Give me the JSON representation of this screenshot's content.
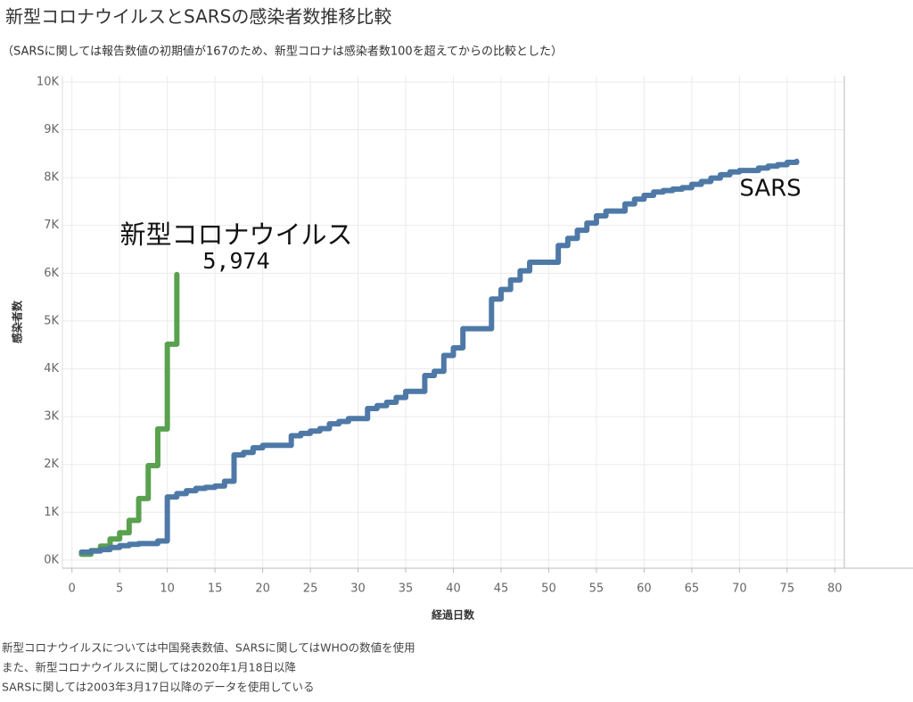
{
  "chart_data": {
    "type": "step",
    "title": "新型コロナウイルスとSARSの感染者数推移比較",
    "subtitle": "（SARSに関しては報告数値の初期値が167のため、新型コロナは感染者数100を超えてからの比較とした）",
    "x_label": "経過日数",
    "y_label": "感染者数",
    "footnotes": [
      "新型コロナウイルスについては中国発表数値、SARSに関してはWHOの数値を使用",
      "また、新型コロナウイルスに関しては2020年1月18日以降",
      "SARSに関しては2003年3月17日以降のデータを使用している"
    ],
    "xlim": [
      -1,
      81
    ],
    "xticks": [
      0,
      5,
      10,
      15,
      20,
      25,
      30,
      35,
      40,
      45,
      50,
      55,
      60,
      65,
      70,
      75,
      80
    ],
    "ylim": [
      -170,
      10130
    ],
    "yticks": [
      {
        "value": 0,
        "label": "0K"
      },
      {
        "value": 1000,
        "label": "1K"
      },
      {
        "value": 2000,
        "label": "2K"
      },
      {
        "value": 3000,
        "label": "3K"
      },
      {
        "value": 4000,
        "label": "4K"
      },
      {
        "value": 5000,
        "label": "5K"
      },
      {
        "value": 6000,
        "label": "6K"
      },
      {
        "value": 7000,
        "label": "7K"
      },
      {
        "value": 8000,
        "label": "8K"
      },
      {
        "value": 9000,
        "label": "9K"
      },
      {
        "value": 10000,
        "label": "10K"
      }
    ],
    "grid": true,
    "series": [
      {
        "name": "新型コロナウイルス",
        "color": "#59a14f",
        "x": [
          1,
          2,
          3,
          4,
          5,
          6,
          7,
          8,
          9,
          10,
          11
        ],
        "values": [
          121,
          198,
          291,
          440,
          571,
          830,
          1287,
          1975,
          2744,
          4515,
          5974
        ],
        "value_labels": [
          null,
          null,
          null,
          null,
          null,
          null,
          null,
          null,
          null,
          null,
          "5,974"
        ]
      },
      {
        "name": "SARS",
        "color": "#4e79a7",
        "x": [
          1,
          2,
          3,
          4,
          5,
          6,
          7,
          8,
          9,
          10,
          11,
          12,
          13,
          14,
          15,
          16,
          17,
          18,
          19,
          20,
          21,
          22,
          23,
          24,
          25,
          26,
          27,
          28,
          29,
          30,
          31,
          32,
          33,
          34,
          35,
          36,
          37,
          38,
          39,
          40,
          41,
          42,
          43,
          44,
          45,
          46,
          47,
          48,
          49,
          50,
          51,
          52,
          53,
          54,
          55,
          56,
          57,
          58,
          59,
          60,
          61,
          62,
          63,
          64,
          65,
          66,
          67,
          68,
          69,
          70,
          71,
          72,
          73,
          74,
          75,
          76
        ],
        "values": [
          167,
          190,
          220,
          264,
          300,
          330,
          345,
          345,
          400,
          1320,
          1390,
          1450,
          1500,
          1520,
          1550,
          1650,
          2200,
          2250,
          2350,
          2400,
          2400,
          2400,
          2600,
          2650,
          2700,
          2750,
          2850,
          2900,
          2960,
          2960,
          3170,
          3230,
          3300,
          3400,
          3530,
          3530,
          3860,
          3950,
          4280,
          4440,
          4840,
          4840,
          4840,
          5460,
          5660,
          5860,
          6050,
          6230,
          6230,
          6230,
          6580,
          6730,
          6900,
          7050,
          7200,
          7300,
          7300,
          7450,
          7550,
          7630,
          7700,
          7730,
          7760,
          7790,
          7860,
          7920,
          7990,
          8060,
          8120,
          8150,
          8150,
          8200,
          8240,
          8270,
          8320,
          8340
        ]
      }
    ]
  }
}
